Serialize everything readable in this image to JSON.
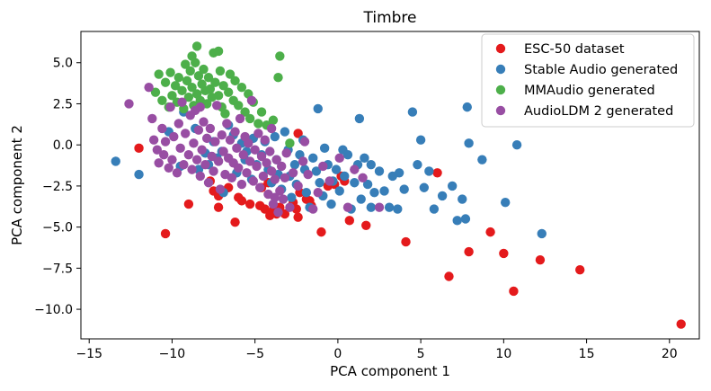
{
  "chart_data": {
    "type": "scatter",
    "title": "Timbre",
    "xlabel": "PCA component 1",
    "ylabel": "PCA component 2",
    "xlim": [
      -15.5,
      21.8
    ],
    "ylim": [
      -11.8,
      6.9
    ],
    "xticks": [
      -15,
      -10,
      -5,
      0,
      5,
      10,
      15,
      20
    ],
    "yticks": [
      -10.0,
      -7.5,
      -5.0,
      -2.5,
      0.0,
      2.5,
      5.0
    ],
    "xtick_labels": [
      "−15",
      "−10",
      "−5",
      "0",
      "5",
      "10",
      "15",
      "20"
    ],
    "ytick_labels": [
      "−10.0",
      "−7.5",
      "−5.0",
      "−2.5",
      "0.0",
      "2.5",
      "5.0"
    ],
    "grid": false,
    "legend_position": "top-right",
    "series": [
      {
        "name": "ESC-50 dataset",
        "color": "#e41a1c",
        "points": [
          [
            -12,
            -0.2
          ],
          [
            -10.4,
            -5.4
          ],
          [
            -9,
            -3.6
          ],
          [
            -7.7,
            -2.2
          ],
          [
            -7.5,
            -2.8
          ],
          [
            -7.2,
            -3.1
          ],
          [
            -7.2,
            -3.8
          ],
          [
            -6.6,
            -2.6
          ],
          [
            -6.2,
            -4.7
          ],
          [
            -6,
            -3.2
          ],
          [
            -5.8,
            -3.4
          ],
          [
            -5.3,
            -3.6
          ],
          [
            -4.7,
            -3.7
          ],
          [
            -4.6,
            -2.6
          ],
          [
            -4.4,
            -3.9
          ],
          [
            -4.2,
            -2.3
          ],
          [
            -4.1,
            -4.3
          ],
          [
            -3.9,
            -4
          ],
          [
            -3.7,
            -4.2
          ],
          [
            -3.5,
            -3.8
          ],
          [
            -3.2,
            -4.2
          ],
          [
            -2.7,
            -3.5
          ],
          [
            -2.5,
            -3.9
          ],
          [
            -2.4,
            -4.4
          ],
          [
            -2.4,
            0.7
          ],
          [
            -2.3,
            -2.9
          ],
          [
            -1.9,
            -3.3
          ],
          [
            -1.7,
            -3.4
          ],
          [
            -1.6,
            -3.7
          ],
          [
            -1,
            -5.3
          ],
          [
            -0.6,
            -2.5
          ],
          [
            -0.2,
            -2.4
          ],
          [
            0.2,
            -1.9
          ],
          [
            0.4,
            -2.2
          ],
          [
            0.7,
            -4.6
          ],
          [
            1.7,
            -4.9
          ],
          [
            4.1,
            -5.9
          ],
          [
            6,
            -1.7
          ],
          [
            6.7,
            -8
          ],
          [
            7.9,
            -6.5
          ],
          [
            9.2,
            -5.3
          ],
          [
            10,
            -6.6
          ],
          [
            10.6,
            -8.9
          ],
          [
            12.2,
            -7
          ],
          [
            14.6,
            -7.6
          ],
          [
            20.7,
            -10.9
          ]
        ]
      },
      {
        "name": "Stable Audio generated",
        "color": "#377eb8",
        "points": [
          [
            -13.4,
            -1
          ],
          [
            -12,
            -1.8
          ],
          [
            -10.2,
            0.8
          ],
          [
            -9.5,
            -1.3
          ],
          [
            -9.3,
            2
          ],
          [
            -8.6,
            1
          ],
          [
            -8.4,
            -1.5
          ],
          [
            -8,
            -0.5
          ],
          [
            -7.8,
            -1.2
          ],
          [
            -7.5,
            0.2
          ],
          [
            -7.3,
            -0.8
          ],
          [
            -7,
            -0.4
          ],
          [
            -6.9,
            -2.9
          ],
          [
            -6.6,
            1.2
          ],
          [
            -6.3,
            0.6
          ],
          [
            -6.1,
            -1.7
          ],
          [
            -5.8,
            0.1
          ],
          [
            -5.6,
            -0.9
          ],
          [
            -5.5,
            -0.4
          ],
          [
            -5.2,
            -2.1
          ],
          [
            -5.1,
            0.4
          ],
          [
            -4.9,
            -1.2
          ],
          [
            -4.6,
            -0.6
          ],
          [
            -4.4,
            0.2
          ],
          [
            -4.2,
            -1.5
          ],
          [
            -4,
            -2.3
          ],
          [
            -3.8,
            0.5
          ],
          [
            -3.7,
            -0.9
          ],
          [
            -3.6,
            -1.8
          ],
          [
            -3.4,
            -2.7
          ],
          [
            -3.2,
            0.8
          ],
          [
            -3,
            -0.3
          ],
          [
            -2.9,
            -1.9
          ],
          [
            -2.8,
            -3.2
          ],
          [
            -2.6,
            -1.2
          ],
          [
            -2.5,
            -2.4
          ],
          [
            -2.3,
            -0.6
          ],
          [
            -2.1,
            0.3
          ],
          [
            -2,
            -1.5
          ],
          [
            -1.9,
            -2.9
          ],
          [
            -1.7,
            -3.8
          ],
          [
            -1.5,
            -0.8
          ],
          [
            -1.3,
            -1.6
          ],
          [
            -1.2,
            2.2
          ],
          [
            -1.1,
            -2.3
          ],
          [
            -0.9,
            -3.1
          ],
          [
            -0.8,
            -0.2
          ],
          [
            -0.6,
            -1.2
          ],
          [
            -0.4,
            -3.6
          ],
          [
            -0.3,
            -2.2
          ],
          [
            -0.1,
            -1.5
          ],
          [
            0.1,
            -2.8
          ],
          [
            0.3,
            -0.3
          ],
          [
            0.4,
            -1.9
          ],
          [
            0.6,
            -0.6
          ],
          [
            0.8,
            -3.9
          ],
          [
            1,
            -2.3
          ],
          [
            1.2,
            -1.2
          ],
          [
            1.3,
            1.6
          ],
          [
            1.4,
            -3.3
          ],
          [
            1.6,
            -0.8
          ],
          [
            1.8,
            -2.4
          ],
          [
            2,
            -1.2
          ],
          [
            2,
            -3.8
          ],
          [
            2.2,
            -2.9
          ],
          [
            2.5,
            -1.6
          ],
          [
            2.8,
            -2.8
          ],
          [
            3.1,
            -3.8
          ],
          [
            3.3,
            -1.9
          ],
          [
            3.6,
            -3.9
          ],
          [
            3.7,
            -1.7
          ],
          [
            4,
            -2.7
          ],
          [
            4.5,
            2
          ],
          [
            4.8,
            -1.2
          ],
          [
            5,
            0.3
          ],
          [
            5.2,
            -2.6
          ],
          [
            5.5,
            -1.6
          ],
          [
            5.8,
            -3.9
          ],
          [
            6.3,
            -3.1
          ],
          [
            6.9,
            -2.5
          ],
          [
            7.2,
            -4.6
          ],
          [
            7.5,
            -3.3
          ],
          [
            7.7,
            -4.5
          ],
          [
            7.8,
            2.3
          ],
          [
            7.9,
            0.1
          ],
          [
            8.7,
            -0.9
          ],
          [
            10.1,
            -3.5
          ],
          [
            10.8,
            0
          ],
          [
            12.3,
            -5.4
          ]
        ]
      },
      {
        "name": "MMAudio generated",
        "color": "#4daf4a",
        "points": [
          [
            -11,
            3.2
          ],
          [
            -10.8,
            4.3
          ],
          [
            -10.6,
            2.7
          ],
          [
            -10.4,
            3.8
          ],
          [
            -10.2,
            2.3
          ],
          [
            -10.1,
            4.4
          ],
          [
            -10,
            3
          ],
          [
            -9.8,
            3.6
          ],
          [
            -9.7,
            2.6
          ],
          [
            -9.6,
            4.1
          ],
          [
            -9.4,
            3.3
          ],
          [
            -9.3,
            2.2
          ],
          [
            -9.2,
            4.9
          ],
          [
            -9.1,
            3.9
          ],
          [
            -9,
            2.9
          ],
          [
            -8.9,
            4.5
          ],
          [
            -8.8,
            3.5
          ],
          [
            -8.7,
            2.4
          ],
          [
            -8.6,
            5
          ],
          [
            -8.5,
            3.1
          ],
          [
            -8.4,
            4.2
          ],
          [
            -8.3,
            2.7
          ],
          [
            -8.2,
            3.7
          ],
          [
            -8.1,
            4.6
          ],
          [
            -8,
            3.3
          ],
          [
            -7.9,
            2.5
          ],
          [
            -7.8,
            4.1
          ],
          [
            -7.7,
            3.4
          ],
          [
            -7.6,
            2.9
          ],
          [
            -7.5,
            5.6
          ],
          [
            -7.4,
            3.8
          ],
          [
            -7.2,
            3
          ],
          [
            -7.1,
            4.5
          ],
          [
            -7,
            2.3
          ],
          [
            -6.9,
            3.6
          ],
          [
            -6.8,
            1.9
          ],
          [
            -6.6,
            3.2
          ],
          [
            -6.5,
            4.3
          ],
          [
            -6.3,
            2.7
          ],
          [
            -6.2,
            3.9
          ],
          [
            -6,
            2.4
          ],
          [
            -5.8,
            3.5
          ],
          [
            -5.6,
            2
          ],
          [
            -5.4,
            3.1
          ],
          [
            -5.3,
            1.6
          ],
          [
            -5.1,
            2.6
          ],
          [
            -4.8,
            1.3
          ],
          [
            -4.6,
            2
          ],
          [
            -4.3,
            1.2
          ],
          [
            -3.9,
            1.5
          ],
          [
            -3.5,
            5.4
          ],
          [
            -2.9,
            0.1
          ],
          [
            -3.6,
            4.1
          ],
          [
            -8.5,
            6
          ],
          [
            -7.2,
            5.7
          ],
          [
            -8.8,
            5.4
          ]
        ]
      },
      {
        "name": "AudioLDM 2 generated",
        "color": "#984ea3",
        "points": [
          [
            -12.6,
            2.5
          ],
          [
            -11.4,
            3.5
          ],
          [
            -11.2,
            1.6
          ],
          [
            -11.1,
            0.3
          ],
          [
            -10.9,
            -0.3
          ],
          [
            -10.8,
            -1.1
          ],
          [
            -10.6,
            1
          ],
          [
            -10.5,
            -0.6
          ],
          [
            -10.4,
            0.2
          ],
          [
            -10.2,
            -1.4
          ],
          [
            -10.1,
            2.3
          ],
          [
            -10,
            -0.9
          ],
          [
            -9.9,
            0.5
          ],
          [
            -9.7,
            -1.7
          ],
          [
            -9.6,
            1.3
          ],
          [
            -9.5,
            -0.2
          ],
          [
            -9.4,
            2.6
          ],
          [
            -9.3,
            -1.2
          ],
          [
            -9.2,
            0.7
          ],
          [
            -9,
            -0.6
          ],
          [
            -8.9,
            1.8
          ],
          [
            -8.8,
            -1.5
          ],
          [
            -8.7,
            0.1
          ],
          [
            -8.6,
            2.1
          ],
          [
            -8.5,
            -0.9
          ],
          [
            -8.4,
            0.9
          ],
          [
            -8.3,
            -1.9
          ],
          [
            -8.2,
            -0.3
          ],
          [
            -8.1,
            1.4
          ],
          [
            -8,
            -1.2
          ],
          [
            -7.9,
            0.4
          ],
          [
            -7.8,
            -2.3
          ],
          [
            -7.7,
            1
          ],
          [
            -7.6,
            -0.7
          ],
          [
            -7.5,
            -1.6
          ],
          [
            -7.4,
            0.2
          ],
          [
            -7.3,
            2.4
          ],
          [
            -7.2,
            -1
          ],
          [
            -7.1,
            -2.7
          ],
          [
            -7,
            0.6
          ],
          [
            -6.9,
            -0.4
          ],
          [
            -6.8,
            -1.8
          ],
          [
            -6.7,
            1.3
          ],
          [
            -6.6,
            -0.8
          ],
          [
            -6.5,
            0.3
          ],
          [
            -6.4,
            -2
          ],
          [
            -6.3,
            -1.1
          ],
          [
            -6.2,
            0.8
          ],
          [
            -6.1,
            -0.2
          ],
          [
            -6,
            -1.4
          ],
          [
            -5.9,
            1.6
          ],
          [
            -5.8,
            -2.4
          ],
          [
            -5.7,
            -0.6
          ],
          [
            -5.6,
            0.5
          ],
          [
            -5.5,
            -1.7
          ],
          [
            -5.4,
            0.1
          ],
          [
            -5.3,
            -1
          ],
          [
            -5.2,
            2.7
          ],
          [
            -5.1,
            -2.2
          ],
          [
            -5,
            -0.3
          ],
          [
            -4.9,
            -1.3
          ],
          [
            -4.8,
            0.7
          ],
          [
            -4.7,
            -2.6
          ],
          [
            -4.6,
            -0.7
          ],
          [
            -4.5,
            -1.9
          ],
          [
            -4.4,
            0.3
          ],
          [
            -4.3,
            -1.1
          ],
          [
            -4.2,
            -3
          ],
          [
            -4.1,
            -0.4
          ],
          [
            -4,
            -1.6
          ],
          [
            -3.9,
            -3.6
          ],
          [
            -3.8,
            -2.1
          ],
          [
            -3.7,
            -0.9
          ],
          [
            -3.6,
            -4.1
          ],
          [
            -3.5,
            -2.8
          ],
          [
            -3.4,
            -1.3
          ],
          [
            -3.3,
            -3.3
          ],
          [
            -3.2,
            -2
          ],
          [
            -3.1,
            -0.5
          ],
          [
            -2.9,
            -3.8
          ],
          [
            -2.7,
            -1.7
          ],
          [
            -2.4,
            -2.5
          ],
          [
            -2.1,
            -1
          ],
          [
            -1.8,
            -1.8
          ],
          [
            -1.5,
            -3.9
          ],
          [
            -1.2,
            -2.9
          ],
          [
            -0.9,
            -1.3
          ],
          [
            -0.5,
            -2.2
          ],
          [
            0.1,
            -0.8
          ],
          [
            0.6,
            -3.8
          ],
          [
            1,
            -1.5
          ],
          [
            1.5,
            -2
          ],
          [
            2.5,
            -3.8
          ],
          [
            -3.8,
            -3.2
          ],
          [
            -8.3,
            2.3
          ],
          [
            -4,
            1
          ],
          [
            -2,
            0.2
          ]
        ]
      }
    ]
  }
}
